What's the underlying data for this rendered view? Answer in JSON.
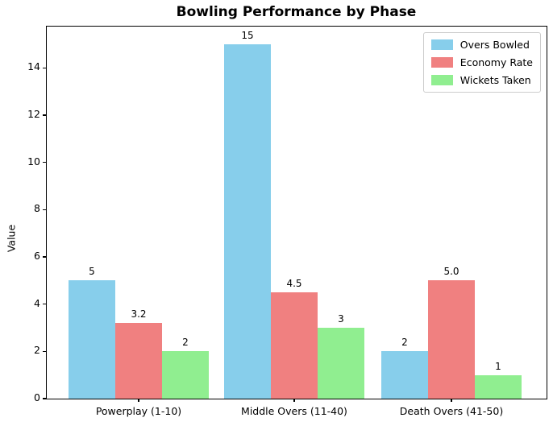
{
  "title": "Bowling Performance by Phase",
  "chart_data": {
    "type": "bar",
    "title": "Bowling Performance by Phase",
    "xlabel": "",
    "ylabel": "Value",
    "categories": [
      "Powerplay (1-10)",
      "Middle Overs (11-40)",
      "Death Overs (41-50)"
    ],
    "series": [
      {
        "name": "Overs Bowled",
        "color": "#87CEEB",
        "values": [
          5,
          15,
          2
        ],
        "labels": [
          "5",
          "15",
          "2"
        ]
      },
      {
        "name": "Economy Rate",
        "color": "#F08080",
        "values": [
          3.2,
          4.5,
          5.0
        ],
        "labels": [
          "3.2",
          "4.5",
          "5.0"
        ]
      },
      {
        "name": "Wickets Taken",
        "color": "#90EE90",
        "values": [
          2,
          3,
          1
        ],
        "labels": [
          "2",
          "3",
          "1"
        ]
      }
    ],
    "yticks": [
      "0",
      "2",
      "4",
      "6",
      "8",
      "10",
      "12",
      "14"
    ],
    "ylim": [
      0,
      15.75
    ],
    "grid": false,
    "legend_position": "upper right"
  }
}
